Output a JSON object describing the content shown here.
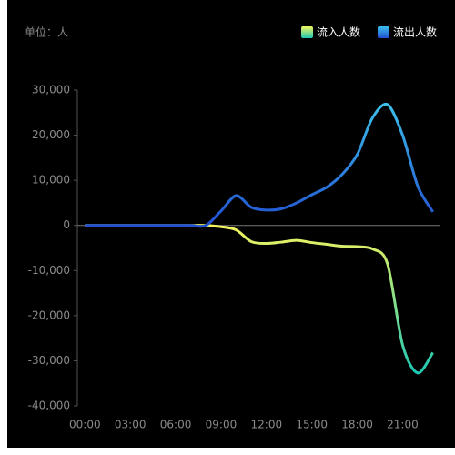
{
  "chart_data": {
    "type": "line",
    "title": "单位：人",
    "legend": "top-right",
    "categories": [
      "00:00",
      null,
      null,
      "03:00",
      null,
      null,
      "06:00",
      null,
      null,
      "09:00",
      null,
      null,
      "12:00",
      null,
      null,
      "15:00",
      null,
      null,
      "18:00",
      null,
      null,
      "21:00",
      null,
      null
    ],
    "series": [
      {
        "name": "流入人数",
        "color": [
          "#f5f55e",
          "#1ec8b4"
        ],
        "values": [
          0,
          0,
          0,
          0,
          0,
          0,
          0,
          0,
          0,
          -300,
          -1000,
          -3600,
          -4000,
          -3700,
          -3300,
          -3800,
          -4200,
          -4600,
          -4700,
          -5200,
          -8500,
          -26500,
          -32700,
          -28200
        ]
      },
      {
        "name": "流出人数",
        "color": [
          "#3cbfea",
          "#2150d2"
        ],
        "values": [
          0,
          0,
          0,
          0,
          0,
          0,
          0,
          0,
          0,
          3200,
          6600,
          4000,
          3400,
          3700,
          5000,
          6800,
          8500,
          11300,
          15700,
          23800,
          26800,
          20000,
          8700,
          3000
        ]
      }
    ],
    "ylim": [
      -40000,
      30000
    ],
    "yticks": [
      {
        "value": -40000,
        "label": "-40,000"
      },
      {
        "value": -30000,
        "label": "-30,000"
      },
      {
        "value": -20000,
        "label": "-20,000"
      },
      {
        "value": -10000,
        "label": "-10,000"
      },
      0,
      {
        "value": 10000,
        "label": "10,000"
      },
      {
        "value": 20000,
        "label": "20,000"
      },
      {
        "value": 30000,
        "label": "30,000"
      }
    ]
  }
}
